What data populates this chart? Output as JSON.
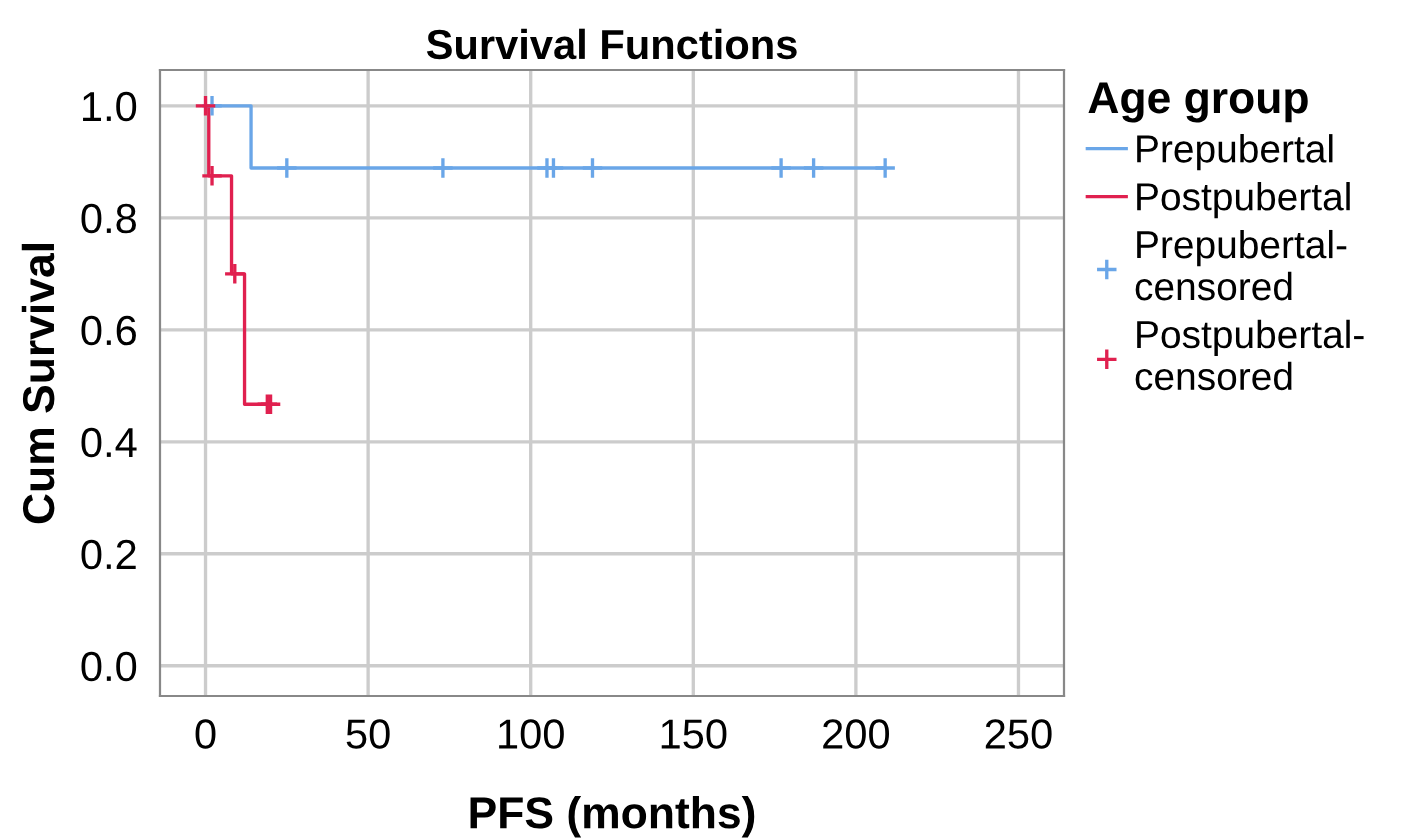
{
  "chart_data": {
    "type": "step",
    "title": "Survival Functions",
    "xlabel": "PFS (months)",
    "ylabel": "Cum Survival",
    "legend_title": "Age group",
    "series": [
      {
        "name": "Prepubertal",
        "color": "#6aa6e8",
        "x": [
          0,
          14,
          209
        ],
        "values": [
          1.0,
          0.889,
          0.889
        ]
      },
      {
        "name": "Postpubertal",
        "color": "#e0204f",
        "x": [
          0,
          1,
          8,
          12,
          20
        ],
        "values": [
          1.0,
          0.875,
          0.7,
          0.467,
          0.467
        ]
      },
      {
        "name": "Prepubertal-\ncensored",
        "type": "scatter",
        "marker": "cross",
        "color": "#6aa6e8",
        "x": [
          2,
          25,
          73,
          105,
          107,
          119,
          177,
          187,
          209
        ],
        "values": [
          1.0,
          0.889,
          0.889,
          0.889,
          0.889,
          0.889,
          0.889,
          0.889,
          0.889
        ]
      },
      {
        "name": "Postpubertal-\ncensored",
        "type": "scatter",
        "marker": "cross",
        "color": "#e0204f",
        "x": [
          0,
          2,
          9,
          19,
          20
        ],
        "values": [
          1.0,
          0.875,
          0.7,
          0.467,
          0.467
        ]
      }
    ],
    "xlim": [
      -14,
      264
    ],
    "ylim": [
      -0.054,
      1.064
    ],
    "xticks": [
      0,
      50,
      100,
      150,
      200,
      250
    ],
    "yticks": [
      {
        "value": 0,
        "label": "0.0"
      },
      {
        "value": 0.2,
        "label": "0.2"
      },
      {
        "value": 0.4,
        "label": "0.4"
      },
      {
        "value": 0.6,
        "label": "0.6"
      },
      {
        "value": 0.8,
        "label": "0.8"
      },
      {
        "value": 1.0,
        "label": "1.0"
      }
    ],
    "grid": true,
    "legend": "right"
  }
}
